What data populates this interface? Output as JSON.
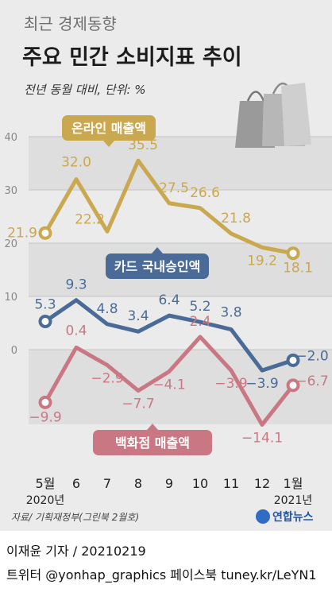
{
  "header": {
    "kicker": "최근 경제동향",
    "title": "주요 민간 소비지표 추이",
    "unit": "전년 동월 대비, 단위: %"
  },
  "chart_data": {
    "type": "line",
    "title": "주요 민간 소비지표 추이",
    "ylabel": "전년 동월 대비, 단위: %",
    "categories": [
      "5월",
      "6",
      "7",
      "8",
      "9",
      "10",
      "11",
      "12",
      "1월"
    ],
    "year_labels": [
      "2020년",
      "2021년"
    ],
    "y_ticks": [
      0,
      10,
      20,
      30,
      40
    ],
    "ylim": [
      -14,
      41
    ],
    "grid": true,
    "series": [
      {
        "name": "온라인 매출액",
        "color": "#c9a84f",
        "values": [
          21.9,
          32.0,
          22.2,
          35.5,
          27.5,
          26.6,
          21.8,
          19.2,
          18.1
        ],
        "labels": [
          "21.9",
          "32.0",
          "22.2",
          "35.5",
          "27.5",
          "26.6",
          "21.8",
          "19.2",
          "18.1"
        ]
      },
      {
        "name": "카드 국내승인액",
        "color": "#4a6b97",
        "values": [
          5.3,
          9.3,
          4.8,
          3.4,
          6.4,
          5.2,
          3.8,
          -3.9,
          -2.0
        ],
        "labels": [
          "5.3",
          "9.3",
          "4.8",
          "3.4",
          "6.4",
          "5.2",
          "3.8",
          "−3.9",
          "−2.0"
        ]
      },
      {
        "name": "백화점 매출액",
        "color": "#c97883",
        "values": [
          -9.9,
          0.4,
          -2.9,
          -7.7,
          -4.1,
          2.4,
          -3.9,
          -14.1,
          -6.7
        ],
        "labels": [
          "−9.9",
          "0.4",
          "−2.9",
          "−7.7",
          "−4.1",
          "2.4",
          "−3.9",
          "−14.1",
          "−6.7"
        ]
      }
    ]
  },
  "footer": {
    "source": "자료/ 기획재정부(그린북 2월호)",
    "logo": "연합뉴스",
    "byline": "이재윤 기자 / 20210219",
    "twitter": "트위터 @yonhap_graphics  페이스북 tuney.kr/LeYN1"
  }
}
